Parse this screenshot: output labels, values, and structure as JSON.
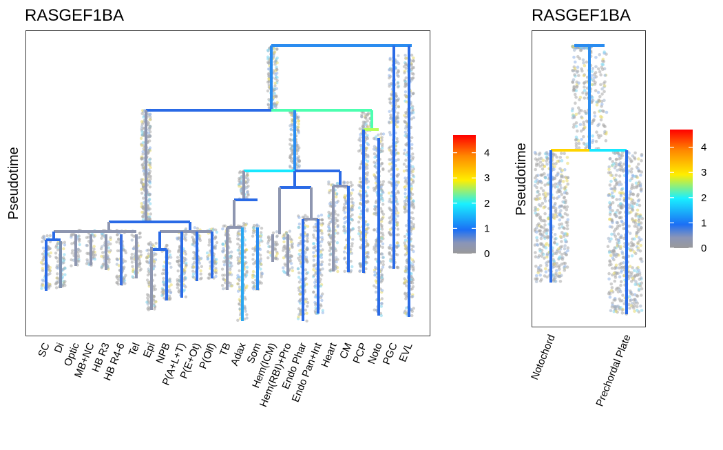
{
  "colorscale": {
    "stops": [
      "#999999",
      "#1b6ff5",
      "#19f0ff",
      "#ffee00",
      "#ff8a00",
      "#ff0000"
    ],
    "range": [
      0,
      4.7
    ],
    "ticks": [
      "0",
      "1",
      "2",
      "3",
      "4"
    ],
    "tick_values": [
      0,
      1,
      2,
      3,
      4
    ]
  },
  "chart_data": [
    {
      "type": "dendrogram",
      "title": "RASGEF1BA",
      "ylabel": "Pseudotime",
      "xlabel": "",
      "leaves": [
        "SC",
        "Di",
        "Optic",
        "MB+NC",
        "HB R3",
        "HB R4-6",
        "Tel",
        "Epi",
        "NPB",
        "P(A+L+T)",
        "P(E+Ot)",
        "P(Olf)",
        "TB",
        "Adax",
        "Som",
        "Hem(ICM)",
        "Hem(RBI)+Pro",
        "Endo Phar",
        "Endo Pan+Int",
        "Heart",
        "CM",
        "PCP",
        "Noto",
        "PGC",
        "EVL"
      ],
      "legend_title": "",
      "legend_position": "right",
      "grid": false
    },
    {
      "type": "dendrogram",
      "title": "RASGEF1BA",
      "ylabel": "Pseudotime",
      "xlabel": "",
      "leaves": [
        "Notochord",
        "Prechordal Plate"
      ],
      "legend_title": "",
      "legend_position": "right",
      "grid": false
    }
  ]
}
